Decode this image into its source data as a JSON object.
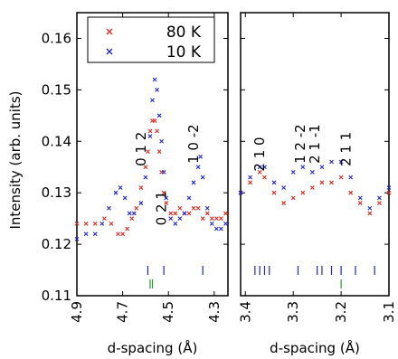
{
  "chart_data": {
    "type": "scatter",
    "ylabel": "Intensity (arb. units)",
    "ylim": [
      0.11,
      0.165
    ],
    "yticks": [
      0.11,
      0.12,
      0.13,
      0.14,
      0.15,
      0.16
    ],
    "ytick_labels": [
      "0.11",
      "0.12",
      "0.13",
      "0.14",
      "0.15",
      "0.16"
    ],
    "legend": {
      "placement": "top-left",
      "entries": [
        {
          "name": "80 K",
          "color": "#e8251c"
        },
        {
          "name": "10 K",
          "color": "#1c23e6"
        }
      ]
    },
    "panels": [
      {
        "id": "left",
        "xlabel": "d-spacing (Å)",
        "xlim": [
          4.9,
          4.24
        ],
        "xticks": [
          4.9,
          4.7,
          4.5,
          4.3
        ],
        "xtick_labels": [
          "4.9",
          "4.7",
          "4.5",
          "4.3"
        ],
        "series": [
          {
            "name": "80 K",
            "color": "#e8251c",
            "x": [
              4.9,
              4.86,
              4.82,
              4.78,
              4.75,
              4.72,
              4.7,
              4.68,
              4.66,
              4.64,
              4.62,
              4.6,
              4.59,
              4.58,
              4.57,
              4.56,
              4.55,
              4.54,
              4.53,
              4.52,
              4.51,
              4.49,
              4.47,
              4.45,
              4.43,
              4.41,
              4.39,
              4.37,
              4.35,
              4.33,
              4.31,
              4.29,
              4.27,
              4.25
            ],
            "y": [
              0.124,
              0.124,
              0.124,
              0.125,
              0.124,
              0.122,
              0.122,
              0.123,
              0.125,
              0.127,
              0.131,
              0.135,
              0.138,
              0.142,
              0.144,
              0.144,
              0.142,
              0.138,
              0.134,
              0.13,
              0.128,
              0.126,
              0.126,
              0.127,
              0.126,
              0.126,
              0.127,
              0.127,
              0.125,
              0.126,
              0.125,
              0.125,
              0.125,
              0.126
            ]
          },
          {
            "name": "10 K",
            "color": "#1c23e6",
            "x": [
              4.9,
              4.86,
              4.82,
              4.79,
              4.76,
              4.73,
              4.71,
              4.69,
              4.67,
              4.65,
              4.62,
              4.6,
              4.58,
              4.57,
              4.56,
              4.55,
              4.54,
              4.53,
              4.52,
              4.51,
              4.49,
              4.47,
              4.45,
              4.43,
              4.41,
              4.39,
              4.37,
              4.36,
              4.35,
              4.33,
              4.31,
              4.29,
              4.27,
              4.25
            ],
            "y": [
              0.121,
              0.122,
              0.122,
              0.124,
              0.127,
              0.13,
              0.131,
              0.129,
              0.126,
              0.126,
              0.128,
              0.133,
              0.141,
              0.148,
              0.152,
              0.15,
              0.145,
              0.14,
              0.134,
              0.129,
              0.125,
              0.124,
              0.125,
              0.126,
              0.129,
              0.132,
              0.135,
              0.137,
              0.133,
              0.127,
              0.124,
              0.123,
              0.123,
              0.124
            ]
          }
        ],
        "tick_marks": {
          "blue": [
            4.59,
            4.52,
            4.35
          ],
          "green": [
            4.58,
            4.57
          ]
        },
        "annotations": [
          {
            "text": "0 1 2",
            "x": 4.62,
            "y": 0.1385
          },
          {
            "text": "1 0 -2",
            "x": 4.39,
            "y": 0.1395
          },
          {
            "text": "0 2 1",
            "x": 4.53,
            "y": 0.127
          }
        ]
      },
      {
        "id": "right",
        "xlabel": "d-spacing (Å)",
        "xlim": [
          3.41,
          3.1
        ],
        "xticks": [
          3.4,
          3.3,
          3.2,
          3.1
        ],
        "xtick_labels": [
          "3.4",
          "3.3",
          "3.2",
          "3.1"
        ],
        "series": [
          {
            "name": "80 K",
            "color": "#e8251c",
            "x": [
              3.41,
              3.39,
              3.37,
              3.36,
              3.34,
              3.32,
              3.3,
              3.28,
              3.26,
              3.24,
              3.22,
              3.2,
              3.18,
              3.16,
              3.14,
              3.12,
              3.1
            ],
            "y": [
              0.13,
              0.132,
              0.134,
              0.133,
              0.13,
              0.128,
              0.129,
              0.13,
              0.131,
              0.132,
              0.132,
              0.133,
              0.13,
              0.128,
              0.126,
              0.128,
              0.13
            ]
          },
          {
            "name": "10 K",
            "color": "#1c23e6",
            "x": [
              3.41,
              3.39,
              3.37,
              3.36,
              3.34,
              3.32,
              3.3,
              3.28,
              3.26,
              3.24,
              3.22,
              3.2,
              3.18,
              3.16,
              3.14,
              3.12,
              3.1
            ],
            "y": [
              0.13,
              0.133,
              0.135,
              0.135,
              0.132,
              0.131,
              0.134,
              0.135,
              0.134,
              0.135,
              0.136,
              0.136,
              0.133,
              0.129,
              0.127,
              0.129,
              0.131
            ]
          }
        ],
        "tick_marks": {
          "blue": [
            3.38,
            3.37,
            3.36,
            3.35,
            3.29,
            3.25,
            3.24,
            3.22,
            3.2,
            3.17,
            3.13
          ],
          "green": [
            3.2
          ]
        },
        "annotations": [
          {
            "text": "2 1 0",
            "x": 3.37,
            "y": 0.1375
          },
          {
            "text": "1 2 -2",
            "x": 3.285,
            "y": 0.1395
          },
          {
            "text": "2 1 -1",
            "x": 3.255,
            "y": 0.1395
          },
          {
            "text": "2 1 1",
            "x": 3.19,
            "y": 0.1385
          }
        ]
      }
    ]
  }
}
